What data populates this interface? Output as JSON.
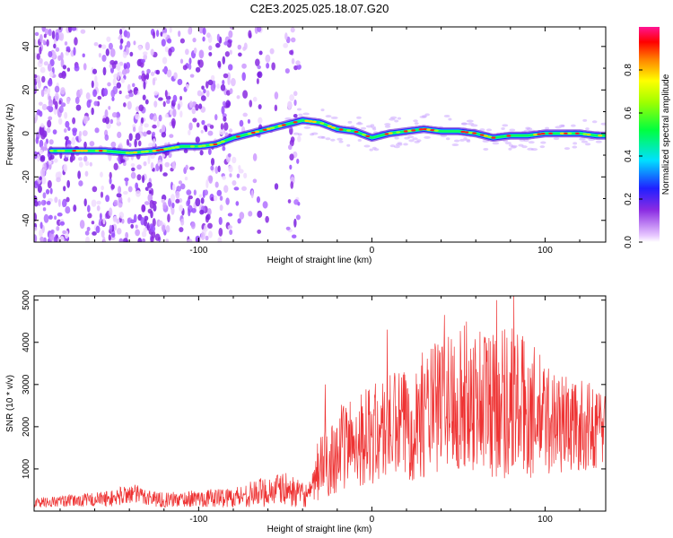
{
  "title": "C2E3.2025.025.18.07.G20",
  "chart_data": [
    {
      "type": "heatmap",
      "xlabel": "Height of straight line (km)",
      "ylabel": "Frequency (Hz)",
      "xlim": [
        -195,
        135
      ],
      "ylim": [
        -50,
        49
      ],
      "xticks": [
        -100,
        0,
        100
      ],
      "xtick_labels": [
        "-100",
        "0",
        "100"
      ],
      "yticks": [
        -40,
        -20,
        0,
        20,
        40
      ],
      "ytick_labels": [
        "-40",
        "-20",
        "0",
        "20",
        "40"
      ],
      "colorbar": {
        "label": "Normalized spectral amplitude",
        "range": [
          0.0,
          1.0
        ],
        "ticks": [
          0.0,
          0.2,
          0.4,
          0.6,
          0.8
        ],
        "tick_labels": [
          "0.0",
          "0.2",
          "0.4",
          "0.6",
          "0.8"
        ]
      },
      "ridge": {
        "x": [
          -185,
          -170,
          -155,
          -140,
          -125,
          -110,
          -100,
          -90,
          -80,
          -70,
          -60,
          -50,
          -40,
          -30,
          -20,
          -10,
          0,
          10,
          20,
          30,
          40,
          50,
          60,
          70,
          80,
          90,
          100,
          110,
          120,
          130
        ],
        "freq": [
          -8,
          -8,
          -8,
          -9,
          -8,
          -6,
          -6,
          -5,
          -2,
          0,
          2,
          4,
          6,
          5,
          2,
          1,
          -2,
          0,
          1,
          2,
          1,
          1,
          0,
          -2,
          -1,
          -1,
          0,
          0,
          0,
          -1
        ]
      },
      "grid": false
    },
    {
      "type": "line",
      "xlabel": "Height of straight line (km)",
      "ylabel": "SNR (10 * v/v)",
      "xlim": [
        -195,
        135
      ],
      "ylim": [
        0,
        5100
      ],
      "xticks": [
        -100,
        0,
        100
      ],
      "xtick_labels": [
        "-100",
        "0",
        "100"
      ],
      "yticks": [
        1000,
        2000,
        3000,
        4000,
        5000
      ],
      "ytick_labels": [
        "1000",
        "2000",
        "3000",
        "4000",
        "5000"
      ],
      "series_color": "#ee3333",
      "envelope": {
        "x": [
          -195,
          -170,
          -150,
          -140,
          -120,
          -100,
          -80,
          -70,
          -60,
          -50,
          -40,
          -35,
          -30,
          -25,
          -20,
          -10,
          0,
          10,
          20,
          30,
          40,
          50,
          60,
          70,
          80,
          90,
          100,
          110,
          120,
          130,
          135
        ],
        "mean": [
          200,
          250,
          300,
          420,
          260,
          300,
          330,
          400,
          480,
          520,
          380,
          400,
          1100,
          1200,
          1450,
          1700,
          1800,
          1950,
          2050,
          2300,
          2500,
          2700,
          2700,
          2600,
          2650,
          2400,
          2200,
          2100,
          2000,
          2000,
          2000
        ],
        "spread": [
          120,
          150,
          200,
          250,
          180,
          200,
          250,
          300,
          380,
          400,
          300,
          300,
          900,
          900,
          1000,
          1100,
          1200,
          1300,
          1400,
          1500,
          1700,
          1800,
          1800,
          1900,
          1900,
          1700,
          1400,
          1200,
          1100,
          1000,
          1000
        ]
      },
      "peaks": [
        {
          "x": -27,
          "y": 3000
        },
        {
          "x": 9,
          "y": 4300
        },
        {
          "x": 42,
          "y": 4650
        },
        {
          "x": 72,
          "y": 5000
        },
        {
          "x": 82,
          "y": 5100
        }
      ],
      "grid": false
    }
  ]
}
